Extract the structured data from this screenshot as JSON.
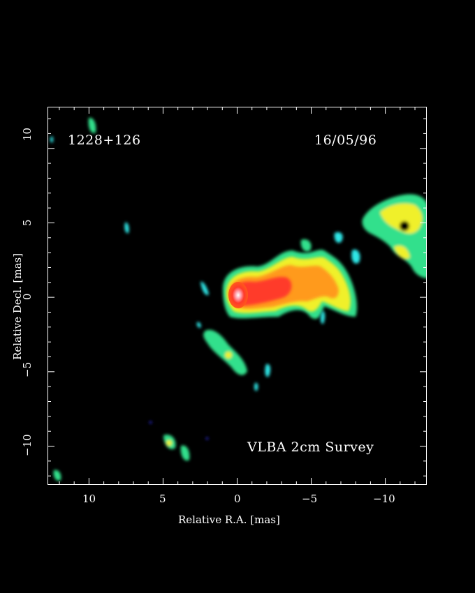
{
  "image": {
    "source_name": "1228+126",
    "date": "16/05/96",
    "survey": "VLBA 2cm Survey",
    "xlabel": "Relative R.A. [mas]",
    "ylabel": "Relative Decl. [mas]",
    "xlim": [
      12.8,
      -12.8
    ],
    "ylim": [
      -12.6,
      12.8
    ],
    "x_ticks": [
      "10",
      "5",
      "0",
      "−5",
      "−10"
    ],
    "y_ticks": [
      "10",
      "5",
      "0",
      "−5",
      "−10"
    ]
  }
}
